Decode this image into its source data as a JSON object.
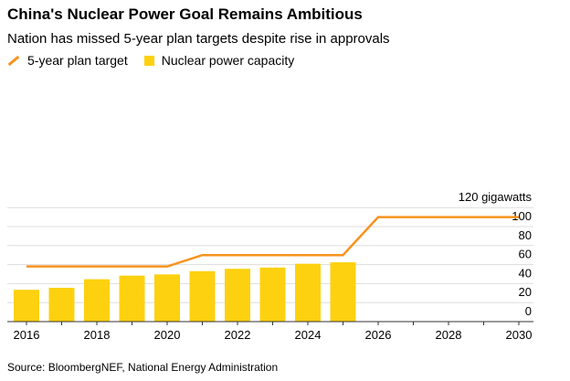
{
  "chart_data": {
    "type": "bar",
    "title": "China's Nuclear Power Goal Remains Ambitious",
    "subtitle": "Nation has missed 5-year plan targets despite rise in approvals",
    "xlabel": "",
    "ylabel": "gigawatts",
    "ylim": [
      0,
      120
    ],
    "y_ticks": [
      0,
      20,
      40,
      60,
      80,
      100,
      120
    ],
    "y_top_label": "120 gigawatts",
    "x_ticks": [
      2016,
      2018,
      2020,
      2022,
      2024,
      2026,
      2028,
      2030
    ],
    "legend": [
      "5-year plan target",
      "Nuclear power capacity"
    ],
    "legend_placement": "top-left",
    "grid": true,
    "series": [
      {
        "name": "Nuclear power capacity",
        "type": "bar",
        "color": "#fdd10f",
        "x": [
          2016,
          2017,
          2018,
          2019,
          2020,
          2021,
          2022,
          2023,
          2024,
          2025
        ],
        "values": [
          33.5,
          35.6,
          44.6,
          48.4,
          49.7,
          53.1,
          55.6,
          56.9,
          60.9,
          62.4
        ]
      },
      {
        "name": "5-year plan target",
        "type": "line",
        "color": "#f7931e",
        "x": [
          2016,
          2020,
          2021,
          2025,
          2026,
          2030
        ],
        "values": [
          58,
          58,
          70,
          70,
          110,
          110
        ]
      }
    ],
    "source": "Source: BloombergNEF, National Energy Administration"
  }
}
